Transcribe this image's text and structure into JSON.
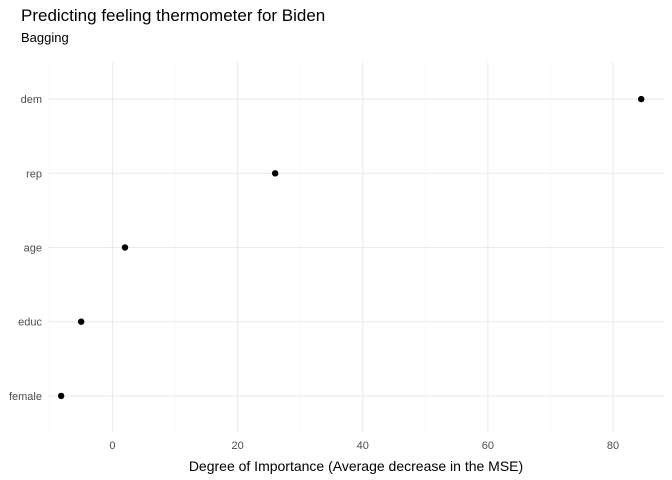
{
  "chart_data": {
    "type": "scatter",
    "title": "Predicting feeling thermometer for Biden",
    "subtitle": "Bagging",
    "xlabel": "Degree of Importance (Average decrease in the MSE)",
    "ylabel": "",
    "categories": [
      "dem",
      "rep",
      "age",
      "educ",
      "female"
    ],
    "values": [
      84.5,
      26.0,
      2.0,
      -5.0,
      -8.2
    ],
    "x_ticks": [
      0,
      20,
      40,
      60,
      80
    ],
    "xlim": [
      -10.3,
      88.3
    ],
    "grid": true,
    "legend": "none",
    "point_color": "#000000"
  }
}
